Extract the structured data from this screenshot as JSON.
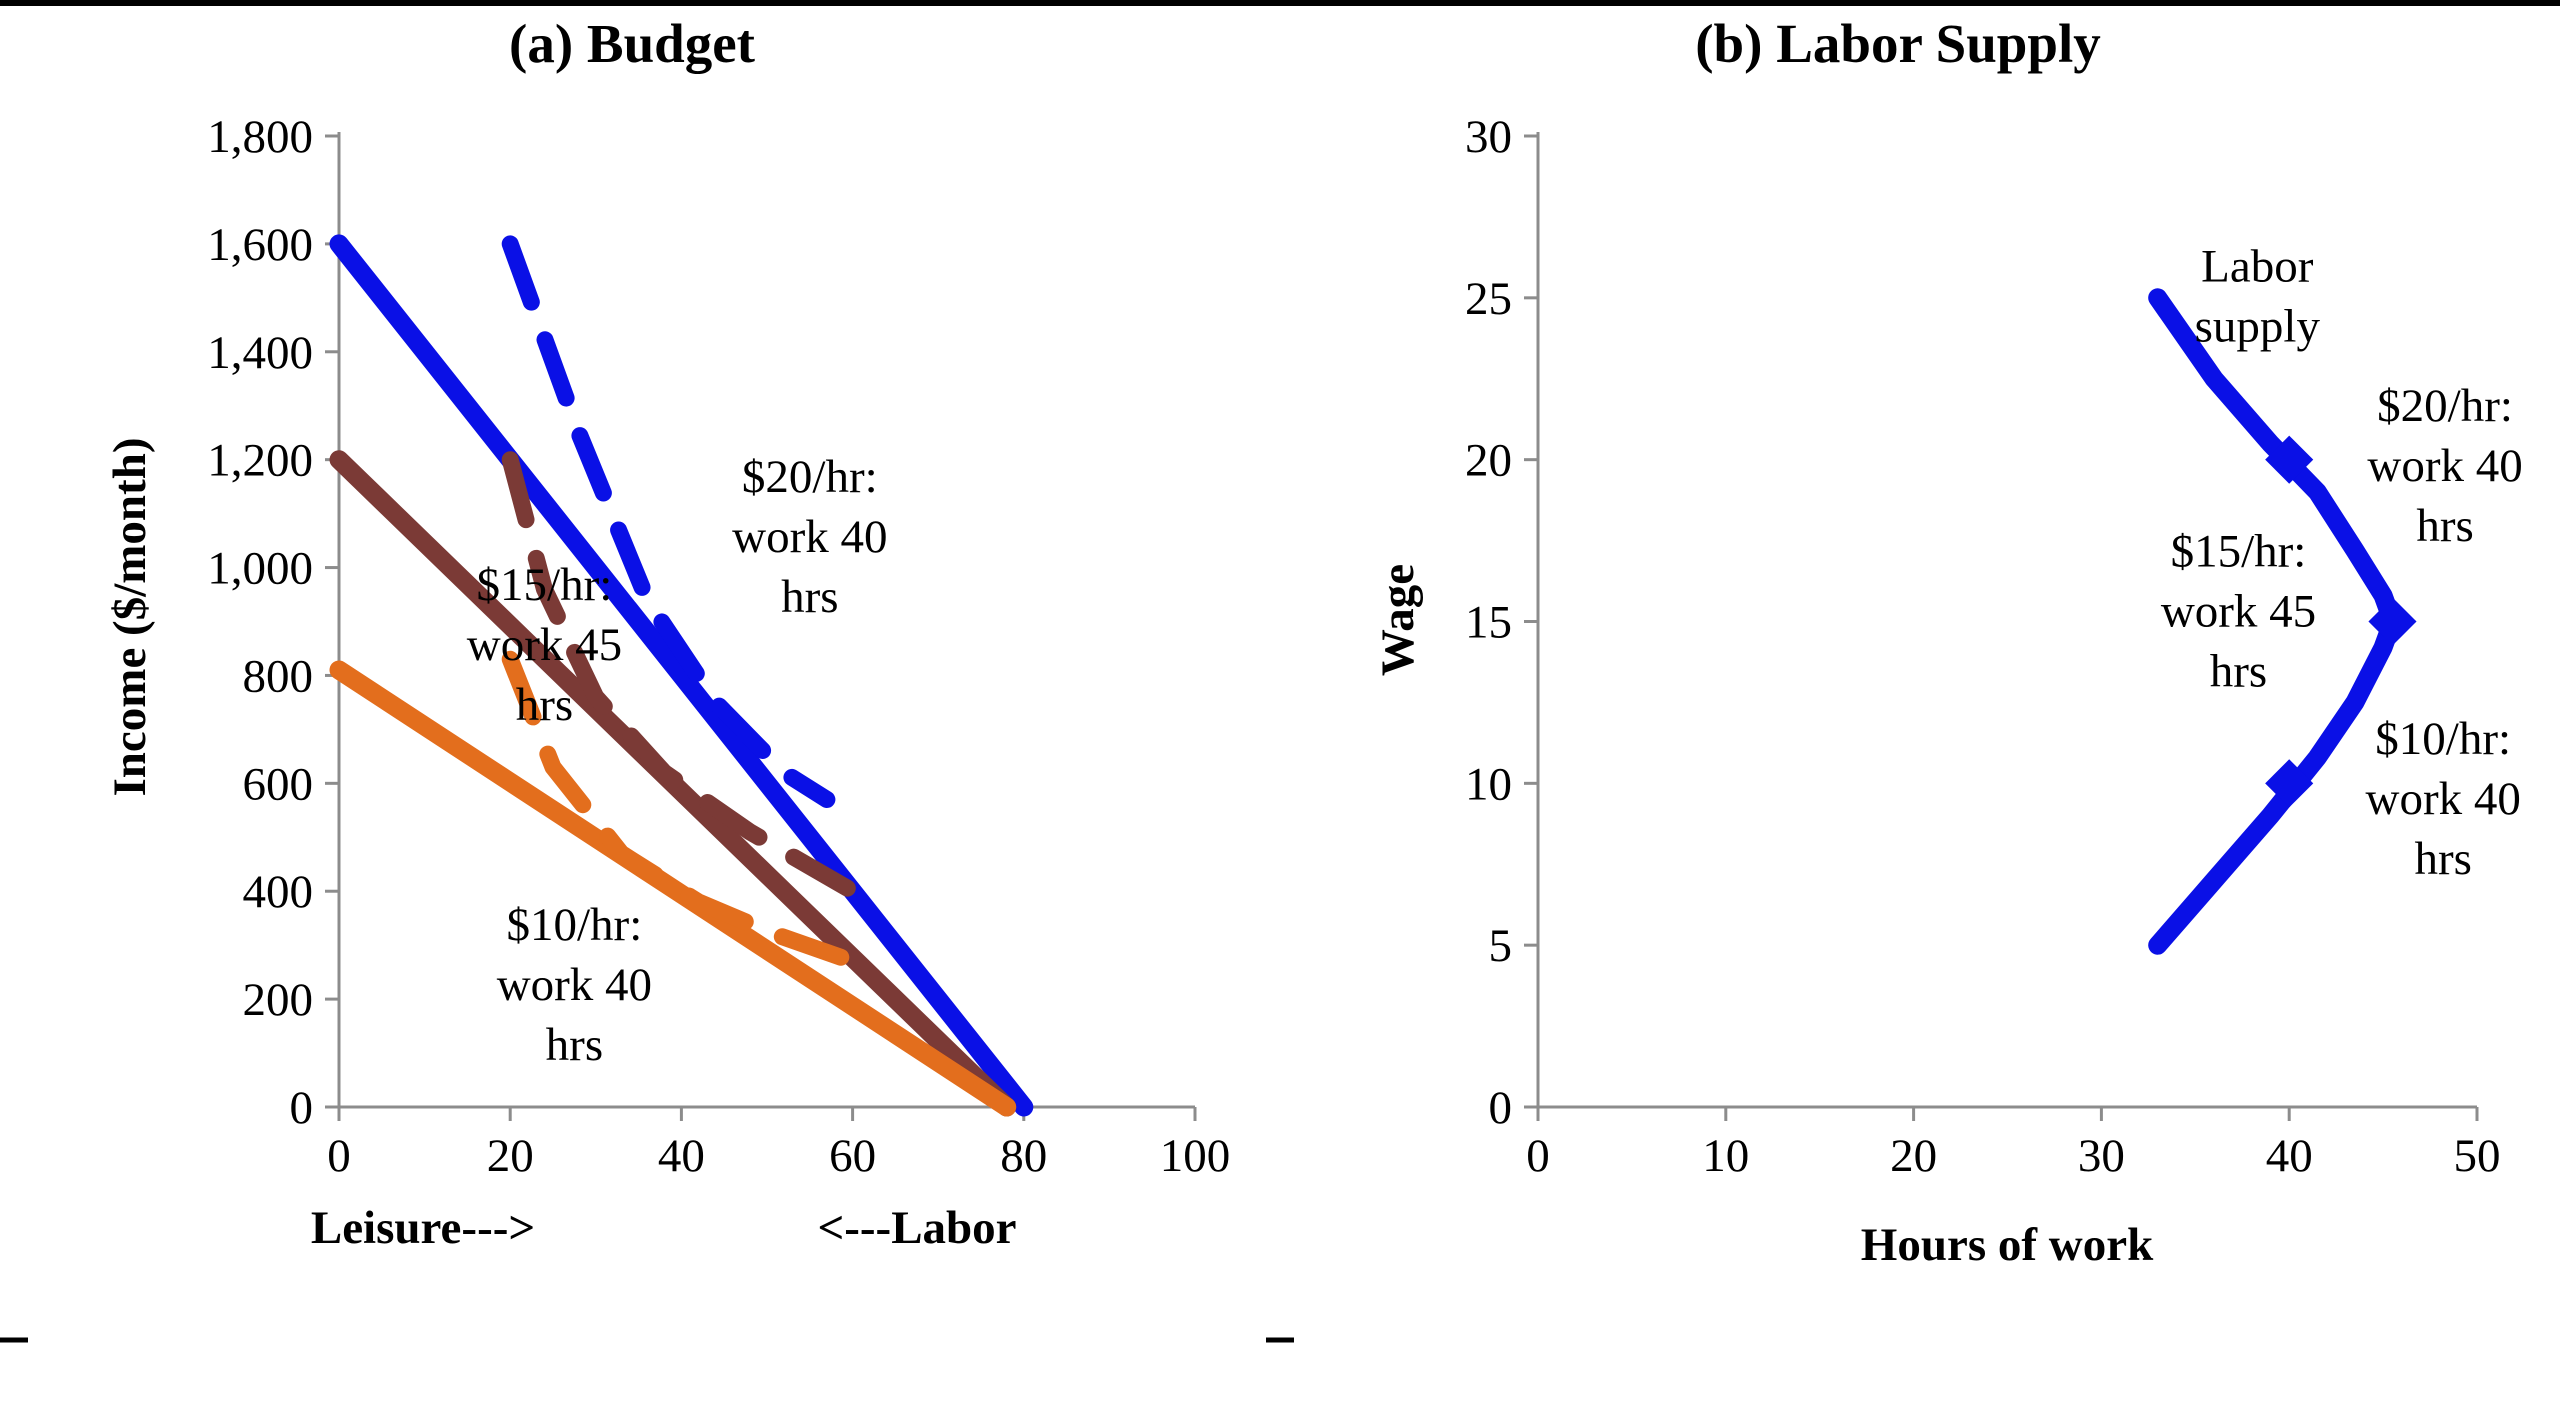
{
  "chart_data": [
    {
      "type": "line",
      "title": "(a) Budget",
      "ylabel": "Income ($/month)",
      "xlabel_left": "Leisure--->",
      "xlabel_right": "<---Labor",
      "xlim": [
        0,
        100
      ],
      "ylim": [
        0,
        1800
      ],
      "xticks": [
        "0",
        "20",
        "40",
        "60",
        "80",
        "100"
      ],
      "yticks": [
        "0",
        "200",
        "400",
        "600",
        "800",
        "1,000",
        "1,200",
        "1,400",
        "1,600",
        "1,800"
      ],
      "grid": false,
      "legend": "none",
      "series": [
        {
          "color": "#0a10e6",
          "style": "solid",
          "x": [
            0,
            80
          ],
          "y": [
            1600,
            0
          ]
        },
        {
          "color": "#7b3a36",
          "style": "solid",
          "x": [
            0,
            78
          ],
          "y": [
            1200,
            0
          ]
        },
        {
          "color": "#e36e1d",
          "style": "solid",
          "x": [
            0,
            78
          ],
          "y": [
            810,
            0
          ]
        },
        {
          "color": "#0a10e6",
          "style": "dashed",
          "x": [
            20,
            28,
            36,
            44,
            52,
            57
          ],
          "y": [
            1600,
            1250,
            940,
            750,
            620,
            570
          ]
        },
        {
          "color": "#7b3a36",
          "style": "dashed",
          "x": [
            20,
            24,
            30,
            38,
            48,
            60
          ],
          "y": [
            1200,
            960,
            760,
            620,
            510,
            400
          ]
        },
        {
          "color": "#e36e1d",
          "style": "dashed",
          "x": [
            20,
            25,
            33,
            42,
            51,
            60
          ],
          "y": [
            830,
            630,
            470,
            380,
            320,
            270
          ]
        }
      ],
      "annotations": [
        {
          "lines": [
            "$20/hr:",
            "work 40",
            "hrs"
          ],
          "x": 55,
          "y": 1140
        },
        {
          "lines": [
            "$15/hr:",
            "work 45",
            "hrs"
          ],
          "x": 24,
          "y": 940
        },
        {
          "lines": [
            "$10/hr:",
            "work 40",
            "hrs"
          ],
          "x": 27.5,
          "y": 310
        }
      ]
    },
    {
      "type": "line",
      "title": "(b) Labor Supply",
      "ylabel": "Wage",
      "xlabel": "Hours of work",
      "xlim": [
        0,
        50
      ],
      "ylim": [
        0,
        30
      ],
      "xticks": [
        "0",
        "10",
        "20",
        "30",
        "40",
        "50"
      ],
      "yticks": [
        "0",
        "5",
        "10",
        "15",
        "20",
        "25",
        "30"
      ],
      "grid": false,
      "legend": "none",
      "series": [
        {
          "color": "#0a10e6",
          "style": "solid",
          "x": [
            33,
            36,
            39,
            41.5,
            43.5,
            45,
            45.5,
            45,
            43.5,
            41.5,
            39,
            36,
            33
          ],
          "y": [
            25,
            22.5,
            20.5,
            19,
            17.2,
            15.8,
            15,
            14.2,
            12.5,
            10.8,
            9,
            7,
            5
          ],
          "markers": [
            {
              "x": 40,
              "y": 20
            },
            {
              "x": 45.5,
              "y": 15
            },
            {
              "x": 40,
              "y": 10
            }
          ]
        }
      ],
      "annotations": [
        {
          "lines": [
            "Labor",
            "supply"
          ],
          "x": 38.3,
          "y": 25.5
        },
        {
          "lines": [
            "$20/hr:",
            "work 40",
            "hrs"
          ],
          "x": 48.3,
          "y": 21.2
        },
        {
          "lines": [
            "$15/hr:",
            "work 45",
            "hrs"
          ],
          "x": 37.3,
          "y": 16.7
        },
        {
          "lines": [
            "$10/hr:",
            "work 40",
            "hrs"
          ],
          "x": 48.2,
          "y": 10.9
        }
      ]
    }
  ]
}
